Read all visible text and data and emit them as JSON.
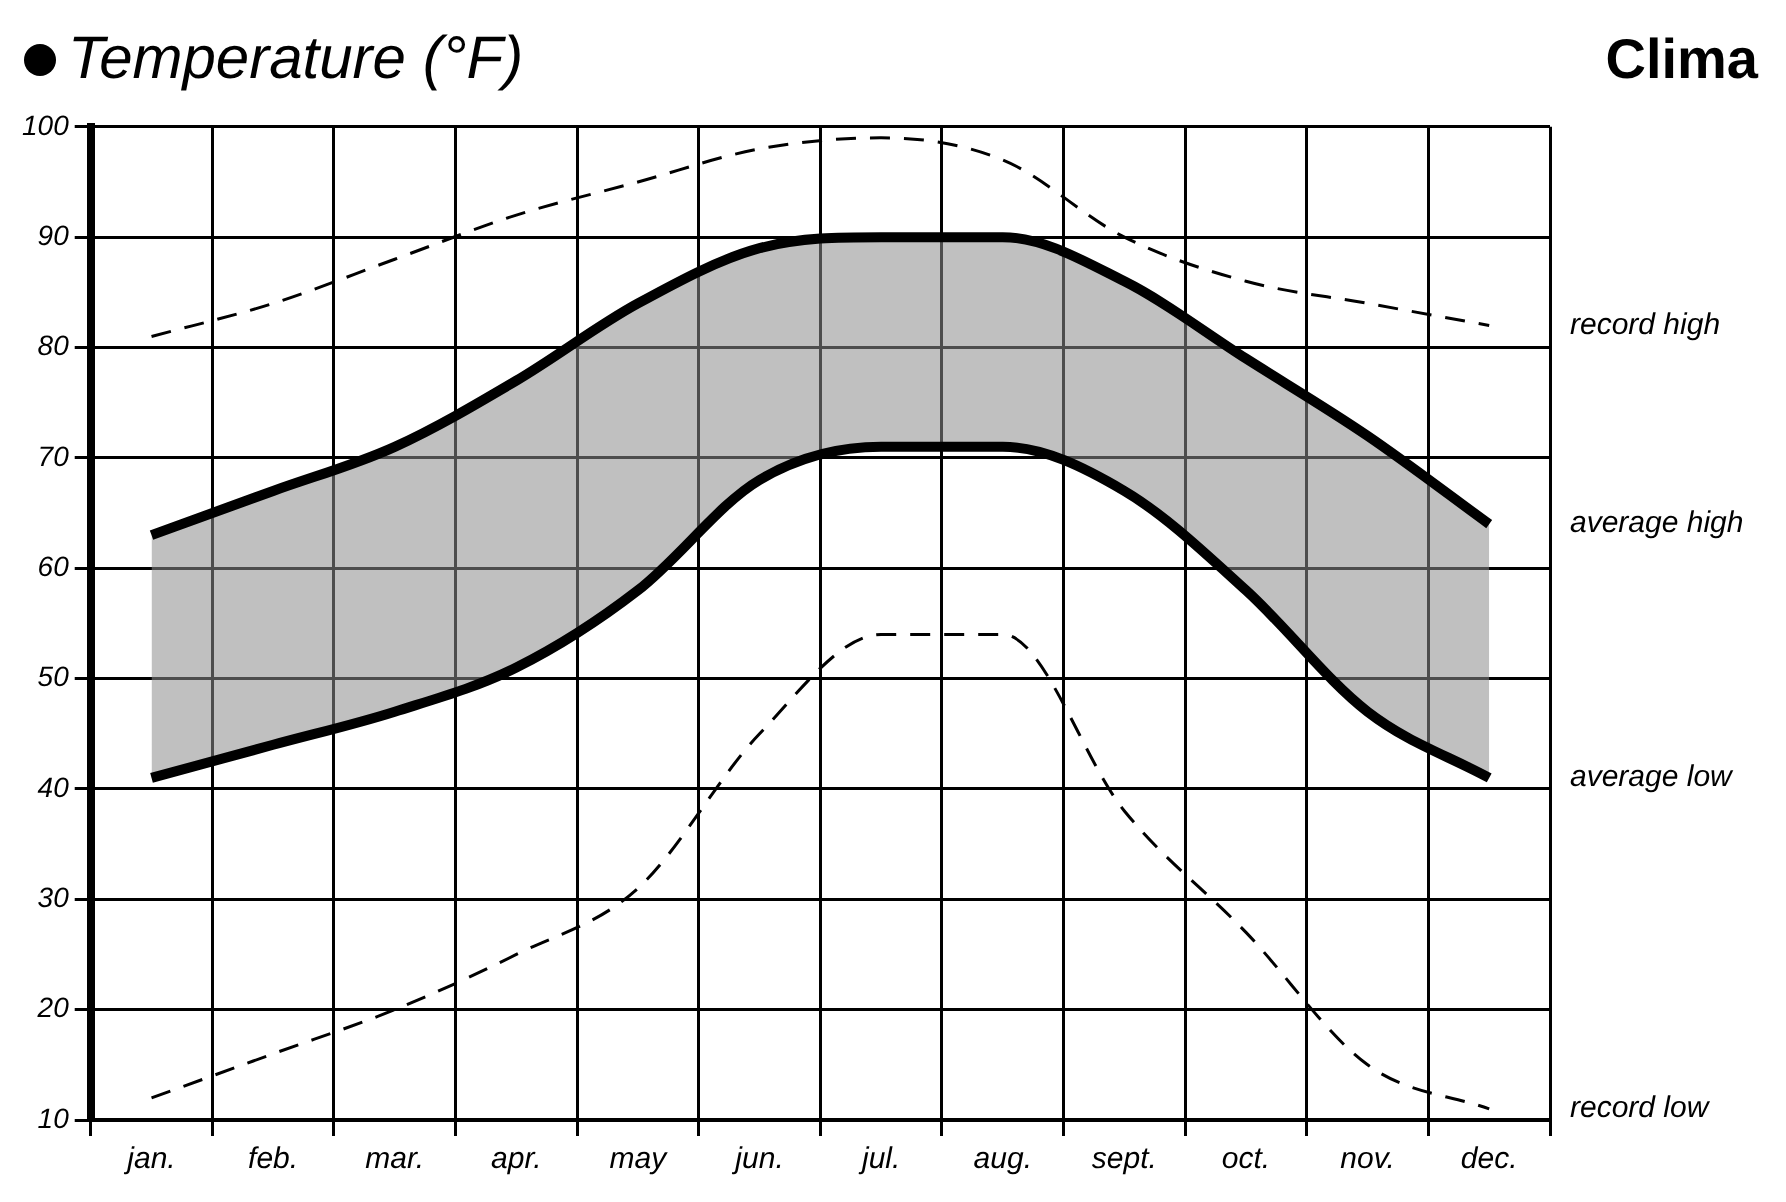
{
  "chart_data": {
    "type": "line",
    "title": "Temperature (°F)",
    "annotations": [
      "Clima"
    ],
    "categories": [
      "jan.",
      "feb.",
      "mar.",
      "apr.",
      "may",
      "jun.",
      "jul.",
      "aug.",
      "sept.",
      "oct.",
      "nov.",
      "dec."
    ],
    "series": [
      {
        "name": "record high",
        "color": "#000000",
        "line_style": "dashed",
        "values": [
          81,
          84,
          88,
          92,
          95,
          98,
          99,
          97,
          90,
          86,
          84,
          82
        ]
      },
      {
        "name": "average high",
        "color": "#000000",
        "line_style": "solid",
        "values": [
          63,
          67,
          71,
          77,
          84,
          89,
          90,
          90,
          86,
          79,
          72,
          64
        ],
        "upper": [
          63,
          67,
          71,
          77,
          84,
          89,
          90,
          90,
          86,
          79,
          72,
          64
        ],
        "lower": [
          41,
          44,
          47,
          51,
          58,
          68,
          71,
          71,
          67,
          58,
          47,
          41
        ]
      },
      {
        "name": "average low",
        "color": "#000000",
        "line_style": "solid",
        "values": [
          41,
          44,
          47,
          51,
          58,
          68,
          71,
          71,
          67,
          58,
          47,
          41
        ]
      },
      {
        "name": "record low",
        "color": "#000000",
        "line_style": "dashed",
        "values": [
          12,
          16,
          20,
          25,
          31,
          45,
          54,
          54,
          38,
          27,
          15,
          11
        ]
      }
    ],
    "ylim": [
      10,
      100
    ],
    "yticks": [
      10,
      20,
      30,
      40,
      50,
      60,
      70,
      80,
      90,
      100
    ],
    "grid": true,
    "legend": false,
    "marker": "none"
  }
}
